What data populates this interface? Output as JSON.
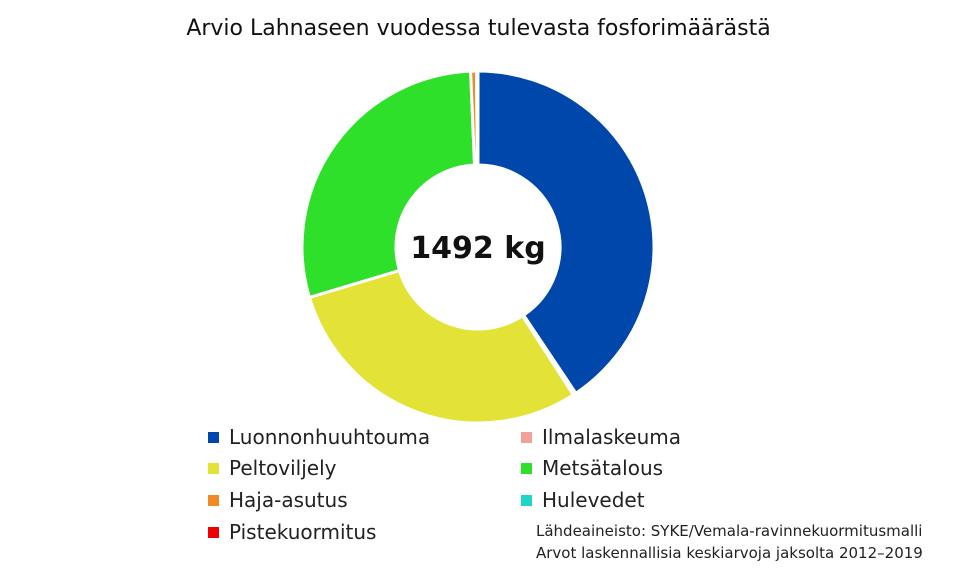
{
  "chart_data": {
    "type": "pie",
    "title": "Arvio Lahnaseen vuodessa tulevasta fosforimäärästä",
    "center_label": "1492 kg",
    "unit": "kg",
    "series": [
      {
        "name": "Luonnonhuuhtouma",
        "value": 606,
        "color": "#0047ab"
      },
      {
        "name": "Ilmalaskeuma",
        "value": 4,
        "color": "#f4a09a"
      },
      {
        "name": "Peltoviljely",
        "value": 440,
        "color": "#e2e336"
      },
      {
        "name": "Metsätalous",
        "value": 432,
        "color": "#2ee02a"
      },
      {
        "name": "Haja-asutus",
        "value": 8,
        "color": "#f08a24"
      },
      {
        "name": "Hulevedet",
        "value": 1,
        "color": "#1fd6c6"
      },
      {
        "name": "Pistekuormitus",
        "value": 1,
        "color": "#ee0000"
      }
    ],
    "legend_position": "bottom"
  },
  "legend_order": [
    "Luonnonhuuhtouma",
    "Ilmalaskeuma",
    "Peltoviljely",
    "Metsätalous",
    "Haja-asutus",
    "Hulevedet",
    "Pistekuormitus"
  ],
  "source": {
    "line1": "Lähdeaineisto: SYKE/Vemala-ravinnekuormitusmalli",
    "line2": "Arvot laskennallisia keskiarvoja jaksolta 2012–2019"
  }
}
